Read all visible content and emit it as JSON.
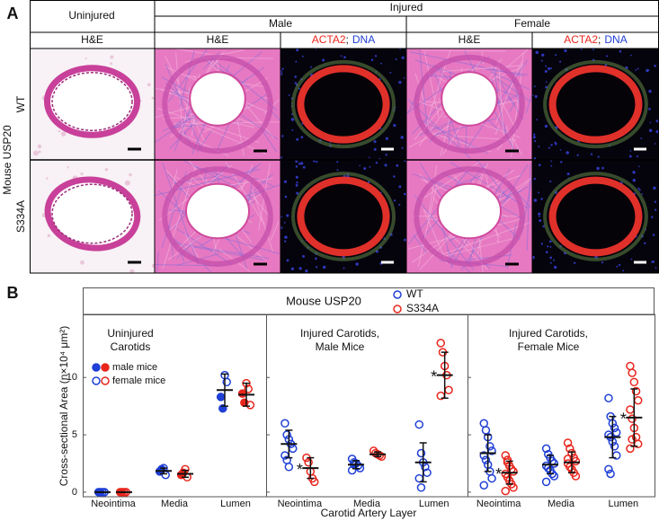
{
  "panel_a": {
    "label": "A",
    "uninjured": "Uninjured",
    "injured": "Injured",
    "male": "Male",
    "female": "Female",
    "stains": [
      "H&E",
      "H&E",
      [
        "ACTA2",
        ";",
        "DNA"
      ],
      "H&E",
      [
        "ACTA2",
        ";",
        "DNA"
      ]
    ],
    "group_label": "Mouse USP20",
    "rows": [
      "WT",
      "S334A"
    ]
  },
  "panel_b": {
    "label": "B",
    "title": "Mouse USP20",
    "ylabel": "Cross-sectional  Area (n×10⁴ μm²)",
    "xlabel": "Carotid Artery Layer"
  },
  "chart_data": [
    {
      "type": "strip",
      "title": [
        "Uninjured",
        "Carotids"
      ],
      "categories": [
        "Neointima",
        "Media",
        "Lumen"
      ],
      "ylim": [
        -0.4,
        15.5
      ],
      "yticks": [
        0,
        5,
        10
      ],
      "show_ytick_labels": true,
      "marker_legend": [
        "male mice",
        "female mice"
      ],
      "series": [
        {
          "name": "WT",
          "color": "#1f3fd6",
          "male": [
            [
              0,
              0
            ],
            [
              1.8,
              2.0
            ],
            [
              8.3,
              7.3
            ]
          ],
          "female": [
            [
              0,
              0
            ],
            [
              2.1,
              1.5
            ],
            [
              10.2,
              9.6
            ]
          ],
          "means": [
            0,
            1.85,
            8.9
          ],
          "sd": [
            0,
            0.25,
            1.4
          ]
        },
        {
          "name": "S334A",
          "color": "#e8261c",
          "male": [
            [
              0,
              0
            ],
            [
              1.5,
              1.7
            ],
            [
              8.6,
              7.8
            ]
          ],
          "female": [
            [
              0,
              0
            ],
            [
              2.0,
              1.3
            ],
            [
              9.5,
              9.0,
              7.6
            ]
          ],
          "means": [
            0,
            1.6,
            8.5
          ],
          "sd": [
            0,
            0.3,
            1.0
          ]
        }
      ]
    },
    {
      "type": "strip",
      "title": [
        "Injured Carotids,",
        "Male Mice"
      ],
      "categories": [
        "Neointima",
        "Media",
        "Lumen"
      ],
      "ylim": [
        -0.4,
        15.5
      ],
      "yticks": [
        0,
        5,
        10
      ],
      "show_ytick_labels": false,
      "series": [
        {
          "color": "#1f3fd6",
          "values": [
            [
              6.0,
              5.0,
              4.6,
              4.2,
              3.8,
              3.2,
              2.8,
              2.2
            ],
            [
              2.9,
              2.6,
              2.5,
              2.3,
              2.1,
              1.9,
              2.4
            ],
            [
              5.9,
              3.4,
              2.6,
              2.2,
              1.7,
              1.2,
              0.4
            ]
          ],
          "means": [
            4.2,
            2.4,
            2.6
          ],
          "sd": [
            1.2,
            0.35,
            1.7
          ]
        },
        {
          "color": "#e8261c",
          "values": [
            [
              3.0,
              2.6,
              1.8,
              1.2,
              0.9
            ],
            [
              3.6,
              3.4,
              3.3,
              3.2,
              3.1
            ],
            [
              13.0,
              12.2,
              11.0,
              10.2,
              8.9,
              8.4
            ]
          ],
          "means": [
            2.1,
            3.3,
            10.2
          ],
          "sd": [
            0.9,
            0.2,
            2.0
          ]
        }
      ],
      "significance": [
        "*",
        null,
        "*"
      ]
    },
    {
      "type": "strip",
      "title": [
        "Injured Carotids,",
        "Female Mice"
      ],
      "categories": [
        "Neointima",
        "Media",
        "Lumen"
      ],
      "ylim": [
        -0.4,
        15.5
      ],
      "yticks": [
        0,
        5,
        10
      ],
      "show_ytick_labels": false,
      "series": [
        {
          "color": "#1f3fd6",
          "values": [
            [
              6.0,
              5.4,
              4.8,
              4.0,
              3.6,
              3.2,
              2.8,
              2.4,
              1.8,
              1.2,
              0.6
            ],
            [
              3.8,
              3.3,
              3.0,
              2.7,
              2.5,
              2.3,
              2.1,
              1.9,
              1.6,
              1.4,
              0.9
            ],
            [
              8.2,
              6.6,
              6.0,
              5.6,
              5.2,
              5.0,
              4.8,
              4.4,
              4.0,
              3.2,
              2.0,
              1.6
            ]
          ],
          "means": [
            3.4,
            2.4,
            4.8
          ],
          "sd": [
            1.6,
            0.8,
            1.8
          ]
        },
        {
          "color": "#e8261c",
          "values": [
            [
              3.2,
              2.6,
              2.3,
              2.0,
              1.8,
              1.6,
              1.3,
              1.0,
              0.7,
              0.4,
              0.1,
              2.8
            ],
            [
              4.3,
              3.8,
              3.4,
              3.0,
              2.7,
              2.5,
              2.2,
              2.0,
              1.7,
              1.4,
              2.9
            ],
            [
              11.0,
              10.4,
              9.6,
              8.8,
              8.0,
              7.2,
              6.4,
              5.6,
              4.8,
              4.2,
              3.8,
              4.6
            ]
          ],
          "means": [
            1.7,
            2.6,
            6.5
          ],
          "sd": [
            1.0,
            0.9,
            2.5
          ]
        }
      ],
      "significance": [
        "*",
        null,
        "*"
      ]
    }
  ]
}
